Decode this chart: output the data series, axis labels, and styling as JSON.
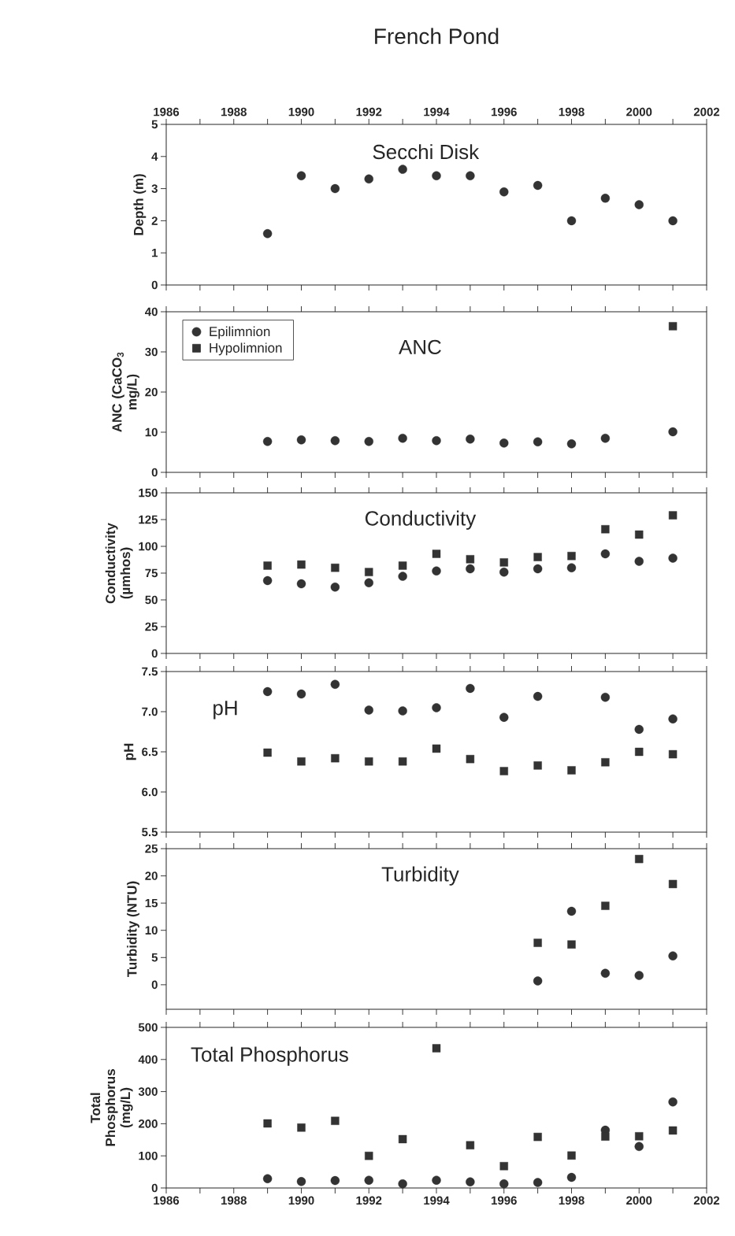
{
  "chart_data": [
    {
      "type": "scatter",
      "title": "Secchi Disk",
      "annotations": [
        "French Pond"
      ],
      "ylabel": "Depth (m)",
      "x": [
        1989,
        1990,
        1991,
        1992,
        1993,
        1994,
        1995,
        1996,
        1997,
        1998,
        1999,
        2000,
        2001
      ],
      "series": [
        {
          "color": "#333333",
          "marker": "circle",
          "values": [
            1.6,
            3.4,
            3.0,
            3.3,
            3.6,
            3.4,
            3.4,
            2.9,
            3.1,
            2.0,
            2.7,
            2.5,
            2.0
          ]
        }
      ],
      "xlim": [
        1986,
        2002
      ],
      "xticks": [
        1986,
        {
          "value": 1987,
          "label": null
        },
        1988,
        {
          "value": 1989,
          "label": null
        },
        1990,
        {
          "value": 1991,
          "label": null
        },
        1992,
        {
          "value": 1993,
          "label": null
        },
        1994,
        {
          "value": 1995,
          "label": null
        },
        1996,
        {
          "value": 1997,
          "label": null
        },
        1998,
        {
          "value": 1999,
          "label": null
        },
        2000,
        {
          "value": 2001,
          "label": null
        },
        2002
      ],
      "ylim": [
        0,
        5
      ],
      "yticks": [
        0,
        1,
        2,
        3,
        4,
        5
      ]
    },
    {
      "type": "scatter",
      "title": "ANC",
      "ylabel": "ANC (CaCO$_{3}$ mg/L)",
      "x": [
        1989,
        1990,
        1991,
        1992,
        1993,
        1994,
        1995,
        1996,
        1997,
        1998,
        1999,
        2000,
        2001
      ],
      "series": [
        {
          "name": "Epilimnion",
          "color": "#333333",
          "marker": "circle",
          "values": [
            7.7,
            8.1,
            7.9,
            7.7,
            8.5,
            7.9,
            8.3,
            7.3,
            7.6,
            7.1,
            8.5,
            null,
            10.1
          ]
        },
        {
          "name": "Hypolimnion",
          "color": "#333333",
          "marker": "square",
          "values": [
            null,
            null,
            null,
            null,
            null,
            null,
            null,
            null,
            null,
            null,
            null,
            null,
            36.4
          ]
        }
      ],
      "legend": "top left",
      "tick_labels": "y",
      "xlim": [
        1986,
        2002
      ],
      "xticks": [
        1986,
        1987,
        1988,
        1989,
        1990,
        1991,
        1992,
        1993,
        1994,
        1995,
        1996,
        1997,
        1998,
        1999,
        2000,
        2001,
        2002
      ],
      "ylim": [
        0,
        40
      ],
      "yticks": [
        0,
        10,
        20,
        30,
        40
      ]
    },
    {
      "type": "scatter",
      "title": "Conductivity",
      "ylabel": "Conductivity (µmhos)",
      "x": [
        1989,
        1990,
        1991,
        1992,
        1993,
        1994,
        1995,
        1996,
        1997,
        1998,
        1999,
        2000,
        2001
      ],
      "series": [
        {
          "color": "#333333",
          "marker": "circle",
          "values": [
            68,
            65,
            62,
            66,
            72,
            77,
            79,
            76,
            79,
            80,
            93,
            86,
            89
          ]
        },
        {
          "color": "#333333",
          "marker": "square",
          "values": [
            82,
            83,
            80,
            76,
            82,
            93,
            88,
            85,
            90,
            91,
            116,
            111,
            129
          ]
        }
      ],
      "tick_labels": "y",
      "xlim": [
        1986,
        2002
      ],
      "xticks": [
        1986,
        1987,
        1988,
        1989,
        1990,
        1991,
        1992,
        1993,
        1994,
        1995,
        1996,
        1997,
        1998,
        1999,
        2000,
        2001,
        2002
      ],
      "ylim": [
        0,
        150
      ],
      "yticks": [
        0,
        25,
        50,
        75,
        100,
        125,
        150
      ]
    },
    {
      "type": "scatter",
      "title": "pH",
      "ylabel": "pH",
      "x": [
        1989,
        1990,
        1991,
        1992,
        1993,
        1994,
        1995,
        1996,
        1997,
        1998,
        1999,
        2000,
        2001
      ],
      "series": [
        {
          "color": "#333333",
          "marker": "circle",
          "values": [
            7.25,
            7.22,
            7.34,
            7.02,
            7.01,
            7.05,
            7.29,
            6.93,
            7.19,
            null,
            7.18,
            6.78,
            6.91
          ]
        },
        {
          "color": "#333333",
          "marker": "square",
          "values": [
            6.49,
            6.38,
            6.42,
            6.38,
            6.38,
            6.54,
            6.41,
            6.26,
            6.33,
            6.27,
            6.37,
            6.5,
            6.47
          ]
        }
      ],
      "tick_labels": "y",
      "xlim": [
        1986,
        2002
      ],
      "xticks": [
        1986,
        1987,
        1988,
        1989,
        1990,
        1991,
        1992,
        1993,
        1994,
        1995,
        1996,
        1997,
        1998,
        1999,
        2000,
        2001,
        2002
      ],
      "ylim": [
        5.5,
        7.5
      ],
      "yticks": [
        5.5,
        {
          "value": 6,
          "label": "6.0"
        },
        6.5,
        {
          "value": 7,
          "label": "7.0"
        },
        7.5
      ]
    },
    {
      "type": "scatter",
      "title": "Turbidity",
      "ylabel": "Turbidity (NTU)",
      "x": [
        1997,
        1998,
        1999,
        2000,
        2001
      ],
      "series": [
        {
          "color": "#333333",
          "marker": "circle",
          "values": [
            0.7,
            13.5,
            2.1,
            1.7,
            5.3
          ]
        },
        {
          "color": "#333333",
          "marker": "square",
          "values": [
            7.7,
            7.4,
            14.5,
            23.1,
            18.5
          ]
        }
      ],
      "tick_labels": "y",
      "xlim": [
        1986,
        2002
      ],
      "xticks": [
        1986,
        1987,
        1988,
        1989,
        1990,
        1991,
        1992,
        1993,
        1994,
        1995,
        1996,
        1997,
        1998,
        1999,
        2000,
        2001,
        2002
      ],
      "ylim": [
        -4.5,
        25
      ],
      "yticks": [
        0,
        5,
        10,
        15,
        20,
        25
      ]
    },
    {
      "type": "scatter",
      "title": "Total Phosphorus",
      "ylabel": "Total Phosphorus (mg/L)",
      "x": [
        1989,
        1990,
        1991,
        1992,
        1993,
        1994,
        1995,
        1996,
        1997,
        1998,
        1999,
        2000,
        2001
      ],
      "series": [
        {
          "color": "#333333",
          "marker": "circle",
          "values": [
            29,
            20,
            23,
            24,
            13,
            24,
            19,
            13,
            17,
            33,
            180,
            129,
            268
          ]
        },
        {
          "color": "#333333",
          "marker": "square",
          "values": [
            201,
            188,
            209,
            100,
            152,
            435,
            133,
            68,
            159,
            101,
            160,
            161,
            179
          ]
        }
      ],
      "xlim": [
        1986,
        2002
      ],
      "xticks": [
        1986,
        {
          "value": 1987,
          "label": null
        },
        1988,
        {
          "value": 1989,
          "label": null
        },
        1990,
        {
          "value": 1991,
          "label": null
        },
        1992,
        {
          "value": 1993,
          "label": null
        },
        1994,
        {
          "value": 1995,
          "label": null
        },
        1996,
        {
          "value": 1997,
          "label": null
        },
        1998,
        {
          "value": 1999,
          "label": null
        },
        2000,
        {
          "value": 2001,
          "label": null
        },
        2002
      ],
      "ylim": [
        0,
        500
      ],
      "yticks": [
        0,
        100,
        200,
        300,
        400,
        500
      ]
    }
  ]
}
